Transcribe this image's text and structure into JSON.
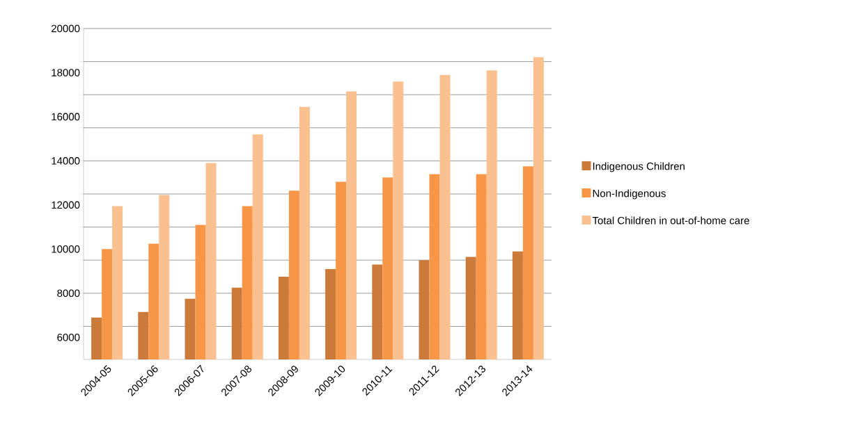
{
  "chart_data": {
    "type": "bar",
    "categories": [
      "2004-05",
      "2005-06",
      "2006-07",
      "2007-08",
      "2008-09",
      "2009-10",
      "2010-11",
      "2011-12",
      "2012-13",
      "2013-14"
    ],
    "series": [
      {
        "name": "Indigenous Children",
        "color": "#cc7a3a",
        "values": [
          6900,
          7150,
          7750,
          8250,
          8750,
          9100,
          9300,
          9500,
          9650,
          9900
        ]
      },
      {
        "name": "Non-Indigenous",
        "color": "#f79646",
        "values": [
          10000,
          10250,
          11100,
          11950,
          12650,
          13050,
          13250,
          13400,
          13400,
          13750
        ]
      },
      {
        "name": "Total Children in out-of-home care",
        "color": "#fac090",
        "values": [
          11950,
          12450,
          13900,
          15200,
          16450,
          17150,
          17600,
          17900,
          18100,
          18700
        ]
      }
    ],
    "ylim": [
      5000,
      20000
    ],
    "yticks": [
      {
        "value": 6500,
        "label": null
      },
      6000,
      {
        "value": 8000,
        "label": null
      },
      8000,
      {
        "value": 9500,
        "label": null
      },
      10000,
      {
        "value": 11000,
        "label": null
      },
      12000,
      {
        "value": 12500,
        "label": null
      },
      {
        "value": 14000,
        "label": null
      },
      14000,
      {
        "value": 15500,
        "label": null
      },
      16000,
      {
        "value": 17000,
        "label": null
      },
      18000,
      {
        "value": 18500,
        "label": null
      },
      {
        "value": 20000,
        "label": null
      },
      20000
    ],
    "grid": "y",
    "legend": "right"
  }
}
